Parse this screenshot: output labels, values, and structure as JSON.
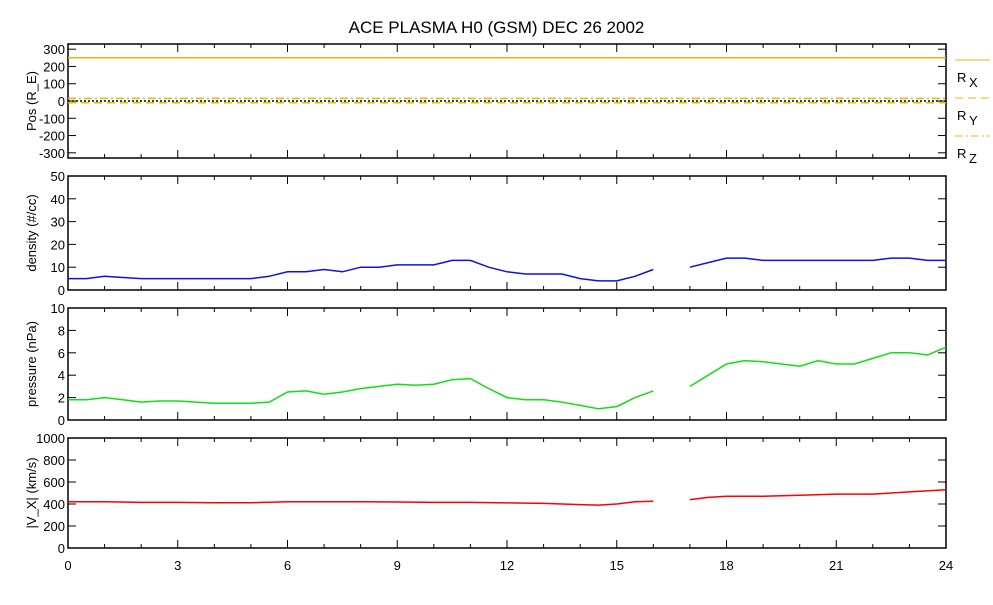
{
  "chart_data": [
    {
      "type": "line",
      "title": "ACE PLASMA H0 (GSM)   DEC 26 2002",
      "ylabel": "Pos (R_E)",
      "ylim": [
        -330,
        330
      ],
      "yticks": [
        300,
        200,
        100,
        0,
        -100,
        -200,
        -300
      ],
      "series": [
        {
          "name": "R_X",
          "legend_sub": "X",
          "color": "#f0b400",
          "style": "solid",
          "x": [
            0,
            24
          ],
          "values": [
            250,
            250
          ]
        },
        {
          "name": "R_Y",
          "legend_sub": "Y",
          "color": "#f0b400",
          "style": "dashed",
          "x": [
            0,
            24
          ],
          "values": [
            -10,
            -10
          ]
        },
        {
          "name": "R_Z",
          "legend_sub": "Z",
          "color": "#f0b400",
          "style": "dashdot",
          "x": [
            0,
            24
          ],
          "values": [
            15,
            15
          ]
        },
        {
          "name": "zero",
          "color": "#000000",
          "style": "dotted",
          "x": [
            0,
            24
          ],
          "values": [
            0,
            0
          ]
        }
      ]
    },
    {
      "type": "line",
      "ylabel": "density (#/cc)",
      "ylim": [
        0,
        50
      ],
      "yticks": [
        50,
        40,
        30,
        20,
        10,
        0
      ],
      "series": [
        {
          "name": "density",
          "color": "#1010e0",
          "x": [
            0,
            0.5,
            1,
            1.5,
            2,
            2.5,
            3,
            3.5,
            4,
            4.5,
            5,
            5.5,
            6,
            6.5,
            7,
            7.5,
            8,
            8.5,
            9,
            9.5,
            10,
            10.5,
            11,
            11.5,
            12,
            12.5,
            13,
            13.5,
            14,
            14.5,
            15,
            15.5,
            16,
            16.5,
            17,
            17.5,
            18,
            18.5,
            19,
            19.5,
            20,
            20.5,
            21,
            21.5,
            22,
            22.5,
            23,
            23.5,
            24
          ],
          "values": [
            5,
            5,
            6,
            5.5,
            5,
            5,
            5,
            5,
            5,
            5,
            5,
            6,
            8,
            8,
            9,
            8,
            10,
            10,
            11,
            11,
            11,
            13,
            13,
            10,
            8,
            7,
            7,
            7,
            5,
            4,
            4,
            6,
            9,
            null,
            10,
            12,
            14,
            14,
            13,
            13,
            13,
            13,
            13,
            13,
            13,
            14,
            14,
            13,
            13
          ]
        }
      ]
    },
    {
      "type": "line",
      "ylabel": "pressure (nPa)",
      "ylim": [
        0,
        10
      ],
      "yticks": [
        10,
        8,
        6,
        4,
        2,
        0
      ],
      "series": [
        {
          "name": "pressure",
          "color": "#10e010",
          "x": [
            0,
            0.5,
            1,
            1.5,
            2,
            2.5,
            3,
            3.5,
            4,
            4.5,
            5,
            5.5,
            6,
            6.5,
            7,
            7.5,
            8,
            8.5,
            9,
            9.5,
            10,
            10.5,
            11,
            11.5,
            12,
            12.5,
            13,
            13.5,
            14,
            14.5,
            15,
            15.5,
            16,
            16.5,
            17,
            17.5,
            18,
            18.5,
            19,
            19.5,
            20,
            20.5,
            21,
            21.5,
            22,
            22.5,
            23,
            23.5,
            24
          ],
          "values": [
            1.8,
            1.8,
            2,
            1.8,
            1.6,
            1.7,
            1.7,
            1.6,
            1.5,
            1.5,
            1.5,
            1.6,
            2.5,
            2.6,
            2.3,
            2.5,
            2.8,
            3,
            3.2,
            3.1,
            3.2,
            3.6,
            3.7,
            2.8,
            2,
            1.8,
            1.8,
            1.6,
            1.3,
            1,
            1.2,
            2,
            2.6,
            null,
            3,
            4,
            5,
            5.3,
            5.2,
            5,
            4.8,
            5.3,
            5,
            5,
            5.5,
            6,
            6,
            5.8,
            6.5
          ]
        }
      ]
    },
    {
      "type": "line",
      "ylabel": "|V_X| (km/s)",
      "ylim": [
        0,
        1000
      ],
      "yticks": [
        1000,
        800,
        600,
        400,
        200,
        0
      ],
      "xlabel": "",
      "xlim": [
        0,
        24
      ],
      "xticks": [
        0,
        3,
        6,
        9,
        12,
        15,
        18,
        21,
        24
      ],
      "series": [
        {
          "name": "Vx",
          "color": "#ff0000",
          "x": [
            0,
            1,
            2,
            3,
            4,
            5,
            6,
            7,
            8,
            9,
            10,
            11,
            12,
            13,
            14,
            14.5,
            15,
            15.5,
            16,
            16.5,
            17,
            17.5,
            18,
            19,
            20,
            21,
            22,
            23,
            24
          ],
          "values": [
            420,
            420,
            415,
            415,
            412,
            412,
            420,
            420,
            420,
            418,
            415,
            415,
            410,
            405,
            395,
            390,
            400,
            420,
            425,
            null,
            440,
            460,
            470,
            470,
            480,
            490,
            490,
            510,
            530
          ]
        }
      ]
    }
  ]
}
